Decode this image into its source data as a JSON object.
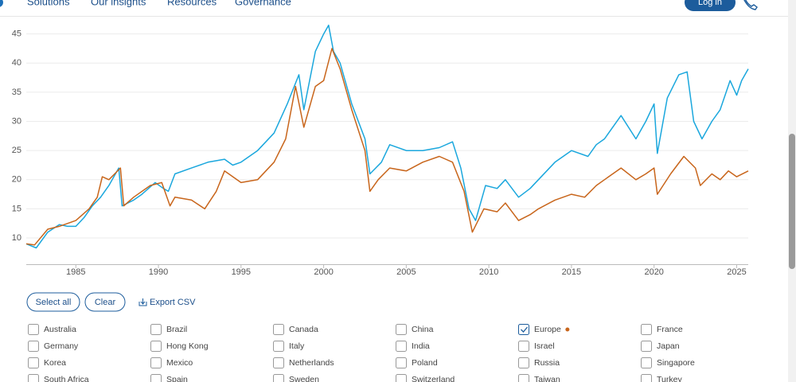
{
  "nav": {
    "items": [
      "Solutions",
      "Our insights",
      "Resources",
      "Governance"
    ],
    "login": "Log in"
  },
  "chart_data": {
    "type": "line",
    "xlim": [
      1982,
      2025.7
    ],
    "xticks": [
      1985,
      1990,
      1995,
      2000,
      2005,
      2010,
      2015,
      2020,
      2025
    ],
    "ylim": [
      5.5,
      47
    ],
    "yticks": [
      10,
      15,
      20,
      25,
      30,
      35,
      40,
      45
    ],
    "grid": true,
    "series": [
      {
        "color": "#1aa7dd",
        "x": [
          1982,
          1982.6,
          1983.3,
          1984,
          1984.5,
          1985,
          1985.5,
          1986,
          1986.5,
          1987,
          1987.6,
          1987.8,
          1988.5,
          1989,
          1989.8,
          1990.3,
          1990.6,
          1991,
          1992,
          1993,
          1994,
          1994.5,
          1995,
          1996,
          1997,
          1997.8,
          1998.5,
          1998.8,
          1999.5,
          2000,
          2000.3,
          2000.6,
          2001,
          2001.7,
          2002.5,
          2002.8,
          2003.5,
          2004,
          2005,
          2006,
          2007,
          2007.8,
          2008.3,
          2008.8,
          2009.2,
          2009.8,
          2010.5,
          2011,
          2011.8,
          2012.5,
          2013,
          2014,
          2015,
          2016,
          2016.5,
          2017,
          2018,
          2018.9,
          2019.5,
          2020,
          2020.2,
          2020.8,
          2021.5,
          2022,
          2022.4,
          2022.9,
          2023.5,
          2024,
          2024.6,
          2025,
          2025.3,
          2025.7
        ],
        "values": [
          9,
          8.3,
          11,
          12.3,
          12,
          12,
          13.5,
          15.5,
          17,
          19,
          22,
          15.5,
          16.5,
          17.5,
          19.5,
          18.5,
          18,
          21,
          22,
          23,
          23.5,
          22.5,
          23,
          25,
          28,
          33,
          38,
          32,
          42,
          45,
          46.5,
          42,
          40,
          33,
          27,
          21,
          23,
          26,
          25,
          25,
          25.5,
          26.5,
          22,
          15,
          13,
          19,
          18.5,
          20,
          17,
          18.5,
          20,
          23,
          25,
          24,
          26,
          27,
          31,
          27,
          30,
          33,
          24.5,
          34,
          38,
          38.5,
          30,
          27,
          30,
          32,
          37,
          34.5,
          37,
          39
        ]
      },
      {
        "name": "Europe",
        "color": "#c8651b",
        "x": [
          1982,
          1982.5,
          1983.3,
          1984,
          1985,
          1985.8,
          1986.3,
          1986.6,
          1987,
          1987.7,
          1987.9,
          1988.5,
          1989.5,
          1990.2,
          1990.7,
          1991,
          1992,
          1992.8,
          1993.5,
          1994,
          1995,
          1996,
          1997,
          1997.7,
          1998.3,
          1998.8,
          1999.5,
          2000,
          2000.5,
          2001,
          2001.7,
          2002.5,
          2002.8,
          2003.3,
          2004,
          2005,
          2006,
          2007,
          2007.8,
          2008.5,
          2009,
          2009.7,
          2010.5,
          2011,
          2011.8,
          2012.5,
          2013,
          2014,
          2015,
          2015.8,
          2016.5,
          2017,
          2018,
          2018.9,
          2019.5,
          2020,
          2020.2,
          2021,
          2021.8,
          2022.5,
          2022.8,
          2023.5,
          2024,
          2024.5,
          2025,
          2025.7
        ],
        "values": [
          9,
          8.8,
          11.5,
          12,
          13,
          15,
          17,
          20.5,
          20,
          22,
          15.5,
          17,
          19,
          19.5,
          15.5,
          17,
          16.5,
          15,
          18,
          21.5,
          19.5,
          20,
          23,
          27,
          36,
          29,
          36,
          37,
          42.5,
          39,
          32,
          25,
          18,
          20,
          22,
          21.5,
          23,
          24,
          23,
          18,
          11,
          15,
          14.5,
          16,
          13,
          14,
          15,
          16.5,
          17.5,
          17,
          19,
          20,
          22,
          20,
          21,
          22,
          17.5,
          21,
          24,
          22,
          19,
          21,
          20,
          21.5,
          20.5,
          21.5
        ]
      }
    ]
  },
  "controls": {
    "select_all": "Select all",
    "clear": "Clear",
    "export": "Export CSV"
  },
  "countries": [
    {
      "label": "Australia",
      "checked": false
    },
    {
      "label": "Brazil",
      "checked": false
    },
    {
      "label": "Canada",
      "checked": false
    },
    {
      "label": "China",
      "checked": false
    },
    {
      "label": "Europe",
      "checked": true
    },
    {
      "label": "France",
      "checked": false
    },
    {
      "label": "Germany",
      "checked": false
    },
    {
      "label": "Hong Kong",
      "checked": false
    },
    {
      "label": "Italy",
      "checked": false
    },
    {
      "label": "India",
      "checked": false
    },
    {
      "label": "Israel",
      "checked": false
    },
    {
      "label": "Japan",
      "checked": false
    },
    {
      "label": "Korea",
      "checked": false
    },
    {
      "label": "Mexico",
      "checked": false
    },
    {
      "label": "Netherlands",
      "checked": false
    },
    {
      "label": "Poland",
      "checked": false
    },
    {
      "label": "Russia",
      "checked": false
    },
    {
      "label": "Singapore",
      "checked": false
    },
    {
      "label": "South Africa",
      "checked": false
    },
    {
      "label": "Spain",
      "checked": false
    },
    {
      "label": "Sweden",
      "checked": false
    },
    {
      "label": "Switzerland",
      "checked": false
    },
    {
      "label": "Taiwan",
      "checked": false
    },
    {
      "label": "Turkey",
      "checked": false
    }
  ]
}
